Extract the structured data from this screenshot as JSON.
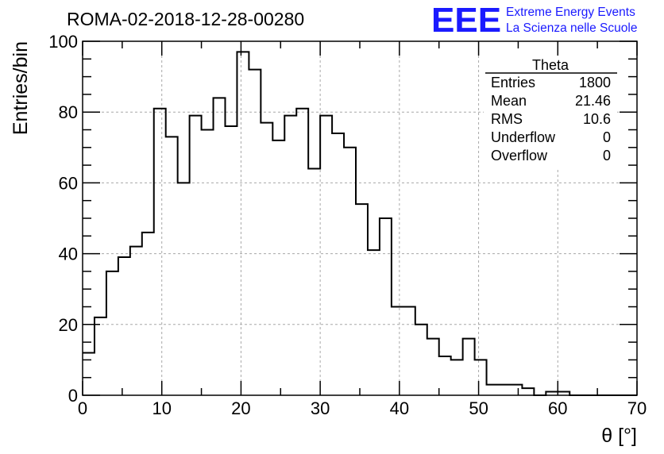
{
  "title": "ROMA-02-2018-12-28-00280",
  "logo": {
    "letters": "EEE",
    "line1": "Extreme Energy Events",
    "line2": "La Scienza nelle Scuole",
    "color": "#1a1aff"
  },
  "stats": {
    "name": "Theta",
    "rows": [
      {
        "label": "Entries",
        "value": "1800"
      },
      {
        "label": "Mean",
        "value": "21.46"
      },
      {
        "label": "RMS",
        "value": "10.6"
      },
      {
        "label": "Underflow",
        "value": "0"
      },
      {
        "label": "Overflow",
        "value": "0"
      }
    ]
  },
  "chart_data": {
    "type": "histogram",
    "title": "ROMA-02-2018-12-28-00280",
    "xlabel": "θ [°]",
    "ylabel": "Entries/bin",
    "xlim": [
      0,
      70
    ],
    "ylim": [
      0,
      100
    ],
    "xticks": [
      0,
      10,
      20,
      30,
      40,
      50,
      60,
      70
    ],
    "yticks": [
      0,
      20,
      40,
      60,
      80,
      100
    ],
    "grid": true,
    "bin_width": 1.5,
    "bin_start": 0,
    "values": [
      12,
      22,
      35,
      39,
      42,
      46,
      81,
      73,
      60,
      79,
      75,
      84,
      76,
      97,
      92,
      77,
      72,
      79,
      81,
      64,
      79,
      74,
      70,
      54,
      41,
      50,
      25,
      25,
      20,
      16,
      11,
      10,
      16,
      10,
      3,
      3,
      3,
      2,
      0,
      1,
      1,
      0,
      0,
      0,
      0,
      0,
      0
    ],
    "line_color": "#000000"
  }
}
